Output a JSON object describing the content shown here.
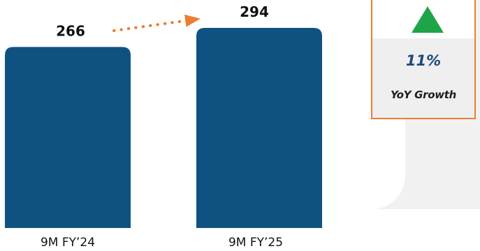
{
  "chart_data": {
    "type": "bar",
    "categories": [
      "9M FY’24",
      "9M FY’25"
    ],
    "values": [
      266,
      294
    ],
    "data_labels": [
      "266",
      "294"
    ],
    "ylim": [
      0,
      294
    ],
    "grid": false,
    "colors": {
      "bar": "#0f5282",
      "arrow": "#ee7d34",
      "growth_up": "#1fa549"
    }
  },
  "growth_card": {
    "value": "11%",
    "label": "YoY Growth",
    "icon": "up-triangle-icon",
    "border_color": "#ee7d34"
  }
}
